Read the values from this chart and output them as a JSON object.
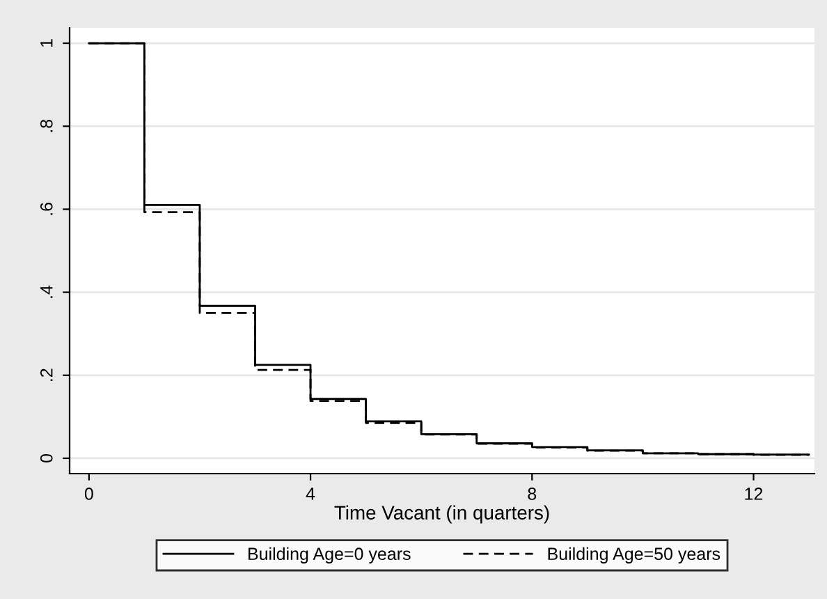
{
  "chart_data": {
    "type": "step",
    "xlabel": "Time Vacant (in quarters)",
    "x": [
      0,
      1,
      2,
      3,
      4,
      5,
      6,
      7,
      8,
      9,
      10,
      11,
      12,
      13
    ],
    "series": [
      {
        "name": "Building Age=0 years",
        "color": "#000000",
        "line_style": "solid",
        "values": [
          1,
          0.61,
          0.367,
          0.225,
          0.143,
          0.089,
          0.058,
          0.036,
          0.027,
          0.019,
          0.012,
          0.01,
          0.009,
          0.009
        ]
      },
      {
        "name": "Building Age=50 years",
        "color": "#000000",
        "line_style": "dashed",
        "values": [
          1,
          0.593,
          0.35,
          0.213,
          0.138,
          0.085,
          0.057,
          0.035,
          0.026,
          0.018,
          0.012,
          0.01,
          0.008,
          0.008
        ]
      }
    ],
    "xlim": [
      -0.35,
      13.1
    ],
    "xticks": [
      0,
      4,
      8,
      12
    ],
    "ylim": [
      -0.037,
      1.037
    ],
    "yticks": [
      0,
      {
        "value": 0.2,
        "label": ".2"
      },
      {
        "value": 0.4,
        "label": ".4"
      },
      {
        "value": 0.6,
        "label": ".6"
      },
      {
        "value": 0.8,
        "label": ".8"
      },
      1
    ],
    "grid": "y",
    "legend": "bottom"
  }
}
